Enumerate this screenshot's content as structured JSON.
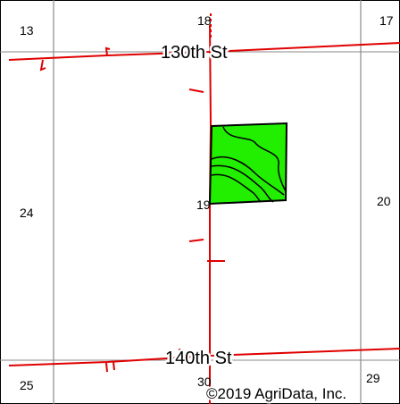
{
  "section_numbers": {
    "s13": "13",
    "s18": "18",
    "s17": "17",
    "s24": "24",
    "s19": "19",
    "s20": "20",
    "s25": "25",
    "s30": "30",
    "s29": "29"
  },
  "roads": {
    "north": "130th St",
    "south": "140th St"
  },
  "copyright": "©2019 AgriData, Inc.",
  "colors": {
    "road": "#e00000",
    "section_line": "#8a8a8a",
    "field_fill": "#22ee00",
    "field_outline": "#000000",
    "frame": "#000000"
  }
}
